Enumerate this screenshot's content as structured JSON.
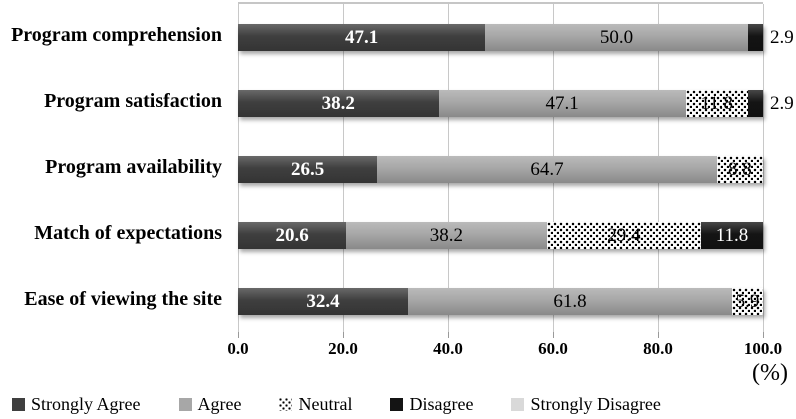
{
  "figure": {
    "axis_unit_label": "(%)"
  },
  "chart_data": {
    "type": "bar",
    "orientation": "horizontal",
    "stacked": true,
    "title": "",
    "xlabel": "(%)",
    "ylabel": "",
    "xlim": [
      0,
      100
    ],
    "grid": true,
    "legend_position": "bottom",
    "categories": [
      "Program comprehension",
      "Program satisfaction",
      "Program availability",
      "Match of expectations",
      "Ease of viewing the site"
    ],
    "x_ticks": [
      "0.0",
      "20.0",
      "40.0",
      "60.0",
      "80.0",
      "100.0"
    ],
    "series": [
      {
        "name": "Strongly Agree",
        "color": "#3f3f3f",
        "pattern": "solid",
        "values": [
          47.1,
          38.2,
          26.5,
          20.6,
          32.4
        ]
      },
      {
        "name": "Agree",
        "color": "#a7a7a7",
        "pattern": "solid",
        "values": [
          50.0,
          47.1,
          64.7,
          38.2,
          61.8
        ]
      },
      {
        "name": "Neutral",
        "color": "#ffffff",
        "pattern": "dots",
        "values": [
          0,
          11.8,
          8.8,
          29.4,
          5.9
        ]
      },
      {
        "name": "Disagree",
        "color": "#141414",
        "pattern": "solid",
        "values": [
          2.9,
          2.9,
          0,
          11.8,
          0
        ]
      },
      {
        "name": "Strongly Disagree",
        "color": "#d9d9d9",
        "pattern": "solid",
        "values": [
          0,
          0,
          0,
          0,
          0
        ]
      }
    ],
    "outside_label_threshold": 4
  }
}
